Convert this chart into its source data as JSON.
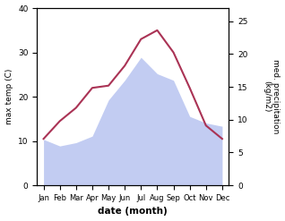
{
  "months": [
    "Jan",
    "Feb",
    "Mar",
    "Apr",
    "May",
    "Jun",
    "Jul",
    "Aug",
    "Sep",
    "Oct",
    "Nov",
    "Dec"
  ],
  "temperature": [
    10.5,
    14.5,
    17.5,
    22.0,
    22.5,
    27.0,
    33.0,
    35.0,
    30.0,
    22.0,
    13.5,
    10.5
  ],
  "precipitation": [
    7.0,
    6.0,
    6.5,
    7.5,
    13.0,
    16.0,
    19.5,
    17.0,
    16.0,
    10.5,
    9.5,
    9.0
  ],
  "temp_color": "#aa3355",
  "precip_color": "#b8c4f0",
  "ylabel_left": "max temp (C)",
  "ylabel_right": "med. precipitation\n(kg/m2)",
  "xlabel": "date (month)",
  "ylim_left": [
    0,
    40
  ],
  "ylim_right": [
    0,
    27
  ],
  "yticks_left": [
    0,
    10,
    20,
    30,
    40
  ],
  "yticks_right": [
    0,
    5,
    10,
    15,
    20,
    25
  ]
}
